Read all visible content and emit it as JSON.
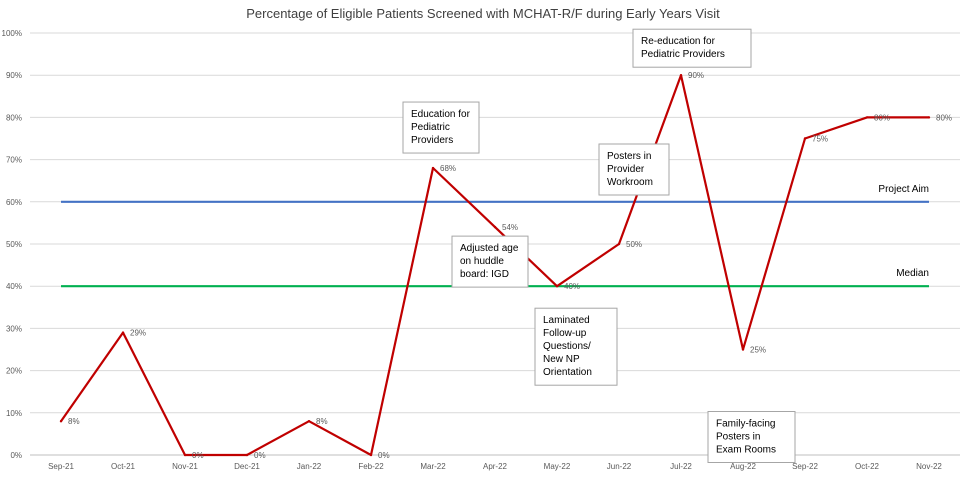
{
  "chart_data": {
    "type": "line",
    "title": "Percentage of Eligible Patients Screened with MCHAT-R/F during Early Years Visit",
    "categories": [
      "Sep-21",
      "Oct-21",
      "Nov-21",
      "Dec-21",
      "Jan-22",
      "Feb-22",
      "Mar-22",
      "Apr-22",
      "May-22",
      "Jun-22",
      "Jul-22",
      "Aug-22",
      "Sep-22",
      "Oct-22",
      "Nov-22"
    ],
    "series": [
      {
        "values": [
          8,
          29,
          0,
          0,
          8,
          0,
          68,
          54,
          40,
          50,
          90,
          25,
          75,
          80,
          80
        ],
        "labels": [
          "8%",
          "29%",
          "0%",
          "0%",
          "8%",
          "0%",
          "68%",
          "54%",
          "40%",
          "50%",
          "90%",
          "25%",
          "75%",
          "80%",
          "80%"
        ],
        "color": "#c00000"
      }
    ],
    "reference_lines": [
      {
        "name": "Project Aim",
        "value": 60,
        "color": "#4472c4"
      },
      {
        "name": "Median",
        "value": 40,
        "color": "#00b050"
      }
    ],
    "ylim": [
      0,
      100
    ],
    "yticks": [
      "0%",
      "10%",
      "20%",
      "30%",
      "40%",
      "50%",
      "60%",
      "70%",
      "80%",
      "90%",
      "100%"
    ],
    "grid": true,
    "annotations": [
      {
        "lines": [
          "Education for",
          "Pediatric",
          "Providers"
        ],
        "anchor": "Mar-22"
      },
      {
        "lines": [
          "Adjusted age",
          "on huddle",
          "board: IGD"
        ],
        "anchor": "Apr-22"
      },
      {
        "lines": [
          "Laminated",
          "Follow-up",
          "Questions/",
          "New NP",
          "Orientation"
        ],
        "anchor": "May-22"
      },
      {
        "lines": [
          "Posters in",
          "Provider",
          "Workroom"
        ],
        "anchor": "Jun-22"
      },
      {
        "lines": [
          "Re-education for",
          "Pediatric Providers"
        ],
        "anchor": "Jul-22"
      },
      {
        "lines": [
          "Family-facing",
          "Posters in",
          "Exam Rooms"
        ],
        "anchor": "Aug-22"
      }
    ]
  }
}
